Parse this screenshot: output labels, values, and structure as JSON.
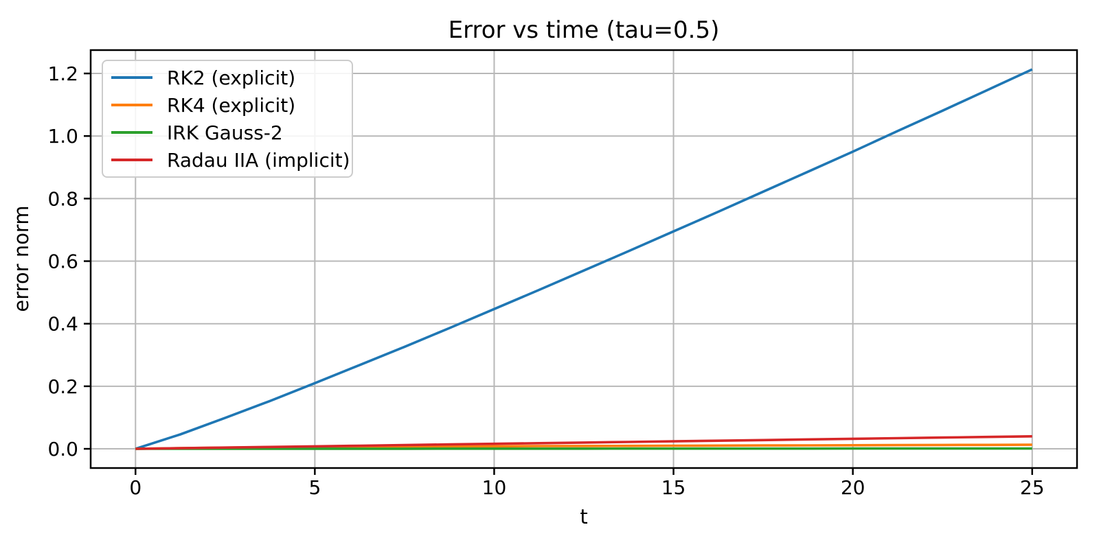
{
  "chart_data": {
    "type": "line",
    "title": "Error vs time (tau=0.5)",
    "xlabel": "t",
    "ylabel": "error norm",
    "xlim": [
      -1.25,
      26.25
    ],
    "ylim": [
      -0.0614,
      1.2747
    ],
    "xticks": [
      0,
      5,
      10,
      15,
      20,
      25
    ],
    "xtick_labels": [
      "0",
      "5",
      "10",
      "15",
      "20",
      "25"
    ],
    "yticks": [
      0.0,
      0.2,
      0.4,
      0.6,
      0.8,
      1.0,
      1.2
    ],
    "ytick_labels": [
      "0.0",
      "0.2",
      "0.4",
      "0.6",
      "0.8",
      "1.0",
      "1.2"
    ],
    "grid": true,
    "grid_color": "#b8b8b8",
    "spine_color": "#000000",
    "legend_position": "upper-left",
    "x": [
      0,
      1.25,
      2.5,
      3.75,
      5,
      6.25,
      7.5,
      8.75,
      10,
      11.25,
      12.5,
      13.75,
      15,
      16.25,
      17.5,
      18.75,
      20,
      21.25,
      22.5,
      23.75,
      25
    ],
    "series": [
      {
        "name": "RK2 (explicit)",
        "color": "#1f77b4",
        "values": [
          0,
          0.046,
          0.099,
          0.153,
          0.21,
          0.268,
          0.326,
          0.386,
          0.447,
          0.508,
          0.57,
          0.632,
          0.695,
          0.758,
          0.822,
          0.886,
          0.95,
          1.016,
          1.081,
          1.147,
          1.213
        ]
      },
      {
        "name": "RK4 (explicit)",
        "color": "#ff7f0e",
        "values": [
          0,
          0.0022,
          0.0038,
          0.005,
          0.0059,
          0.0066,
          0.0072,
          0.0077,
          0.0082,
          0.0087,
          0.0091,
          0.0095,
          0.0099,
          0.0103,
          0.0107,
          0.0111,
          0.0115,
          0.0119,
          0.0123,
          0.0126,
          0.013
        ]
      },
      {
        "name": "IRK Gauss-2",
        "color": "#2ca02c",
        "values": [
          0,
          0.0001,
          0.0001,
          0.0002,
          0.0002,
          0.0003,
          0.0003,
          0.0004,
          0.0004,
          0.0005,
          0.0005,
          0.0006,
          0.0006,
          0.0007,
          0.0007,
          0.0007,
          0.0008,
          0.0008,
          0.0009,
          0.0009,
          0.001
        ]
      },
      {
        "name": "Radau IIA (implicit)",
        "color": "#d62728",
        "values": [
          0,
          0.002,
          0.004,
          0.006,
          0.008,
          0.01,
          0.012,
          0.014,
          0.016,
          0.018,
          0.02,
          0.022,
          0.024,
          0.026,
          0.028,
          0.03,
          0.032,
          0.034,
          0.036,
          0.038,
          0.04
        ]
      }
    ]
  }
}
